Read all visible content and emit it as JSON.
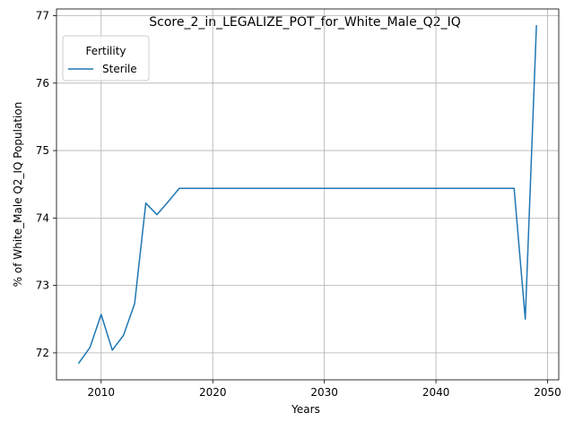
{
  "chart_data": {
    "type": "line",
    "title": "Score_2_in_LEGALIZE_POT_for_White_Male_Q2_IQ",
    "xlabel": "Years",
    "ylabel": "% of White_Male Q2_IQ Population",
    "xlim": [
      2006,
      2051
    ],
    "ylim": [
      71.6,
      77.1
    ],
    "xticks": [
      2010,
      2020,
      2030,
      2040,
      2050
    ],
    "yticks": [
      72,
      73,
      74,
      75,
      76,
      77
    ],
    "grid": true,
    "legend": {
      "title": "Fertility",
      "location": "top-left"
    },
    "series": [
      {
        "name": "Sterile",
        "color": "#1f77b4",
        "x": [
          2008,
          2009,
          2010,
          2011,
          2012,
          2013,
          2014,
          2015,
          2016,
          2017,
          2018,
          2019,
          2020,
          2021,
          2022,
          2023,
          2024,
          2025,
          2026,
          2027,
          2028,
          2029,
          2030,
          2031,
          2032,
          2033,
          2034,
          2035,
          2036,
          2037,
          2038,
          2039,
          2040,
          2041,
          2042,
          2043,
          2044,
          2045,
          2046,
          2047,
          2048,
          2049
        ],
        "y": [
          71.85,
          72.08,
          72.57,
          72.04,
          72.26,
          72.73,
          74.22,
          74.05,
          74.24,
          74.44,
          74.44,
          74.44,
          74.44,
          74.44,
          74.44,
          74.44,
          74.44,
          74.44,
          74.44,
          74.44,
          74.44,
          74.44,
          74.44,
          74.44,
          74.44,
          74.44,
          74.44,
          74.44,
          74.44,
          74.44,
          74.44,
          74.44,
          74.44,
          74.44,
          74.44,
          74.44,
          74.44,
          74.44,
          74.44,
          74.44,
          72.5,
          76.85
        ]
      }
    ]
  }
}
